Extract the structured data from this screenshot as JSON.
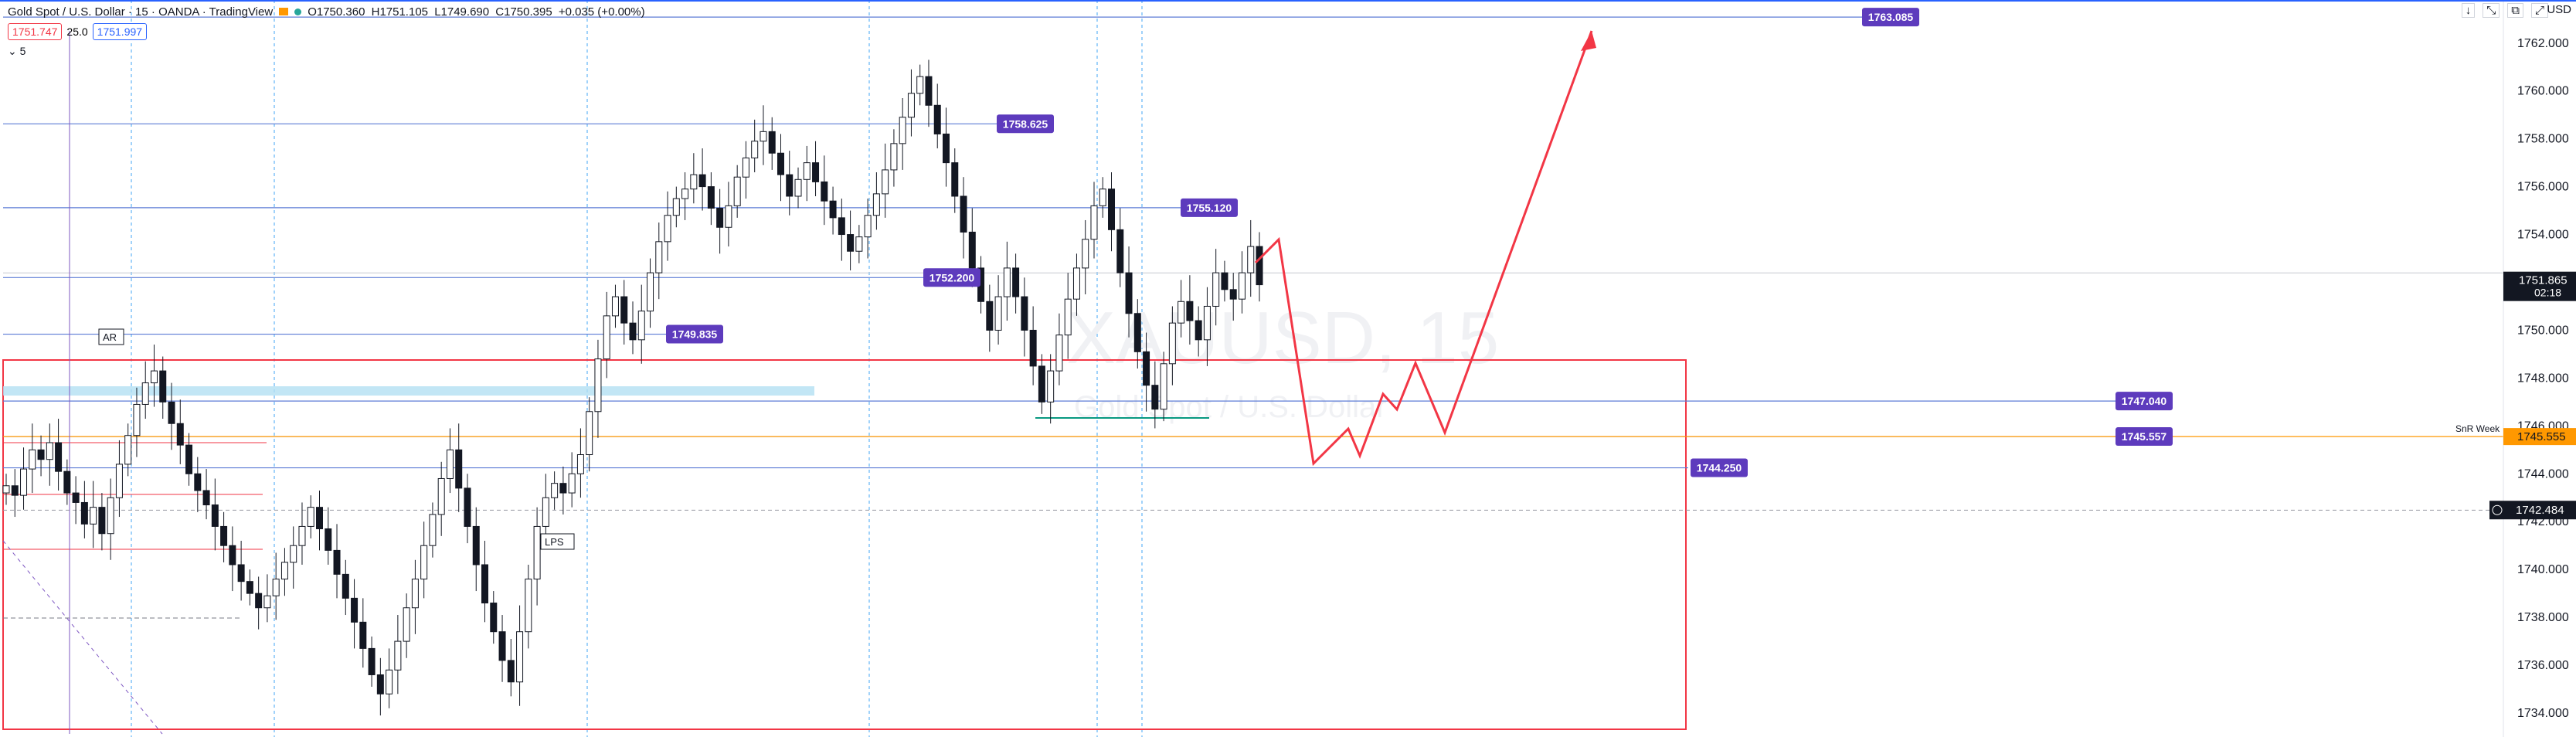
{
  "header": {
    "title": "Gold Spot / U.S. Dollar · 15 · OANDA · TradingView",
    "open": "O1750.360",
    "high": "H1751.105",
    "low": "L1749.690",
    "close": "C1750.395",
    "change": "+0.035 (+0.00%)",
    "sell_price": "1751.747",
    "spread": "25.0",
    "buy_price": "1751.997",
    "indicator_count": "5",
    "currency": "USD",
    "top_controls": [
      "↓",
      "⤡",
      "⧉",
      "⤢"
    ]
  },
  "chart_data": {
    "type": "candlestick",
    "ylim": [
      1733.0,
      1763.8
    ],
    "y_ticks": [
      1734,
      1736,
      1738,
      1740,
      1742,
      1744,
      1746,
      1748,
      1750,
      1752,
      1754,
      1756,
      1758,
      1760,
      1762
    ],
    "y_tick_labels": [
      "1734.000",
      "1736.000",
      "1738.000",
      "1740.000",
      "1742.000",
      "1744.000",
      "1746.000",
      "1748.000",
      "1750.000",
      "1752.000",
      "1754.000",
      "1756.000",
      "1758.000",
      "1760.000",
      "1762.000"
    ],
    "current_price": "1751.865",
    "countdown": "02:18",
    "crosshair_price": "1742.484",
    "snr_label": "SnR Week",
    "snr_price": "1745.555",
    "watermark_symbol": "XAUUSD, 15",
    "watermark_name": "Gold Spot / U.S. Dollar",
    "accent_color": "#5d3bbd",
    "level_labels": [
      {
        "value": 1763.085,
        "text": "1763.085"
      },
      {
        "value": 1758.625,
        "text": "1758.625"
      },
      {
        "value": 1755.12,
        "text": "1755.120"
      },
      {
        "value": 1752.2,
        "text": "1752.200"
      },
      {
        "value": 1749.835,
        "text": "1749.835"
      },
      {
        "value": 1747.04,
        "text": "1747.040"
      },
      {
        "value": 1745.557,
        "text": "1745.557"
      },
      {
        "value": 1744.25,
        "text": "1744.250"
      }
    ],
    "annotations": [
      "AR",
      "LPS"
    ],
    "closes": [
      1743.5,
      1743.1,
      1744.2,
      1745.0,
      1744.6,
      1745.3,
      1744.1,
      1743.2,
      1742.8,
      1741.9,
      1742.6,
      1741.5,
      1743.0,
      1744.4,
      1745.6,
      1746.9,
      1747.8,
      1748.3,
      1747.0,
      1746.1,
      1745.2,
      1744.0,
      1743.3,
      1742.7,
      1741.8,
      1741.0,
      1740.2,
      1739.5,
      1739.0,
      1738.4,
      1738.9,
      1739.6,
      1740.3,
      1741.0,
      1741.8,
      1742.6,
      1741.7,
      1740.8,
      1739.8,
      1738.8,
      1737.8,
      1736.7,
      1735.6,
      1734.8,
      1735.8,
      1737.0,
      1738.4,
      1739.6,
      1741.0,
      1742.3,
      1743.8,
      1745.0,
      1743.4,
      1741.8,
      1740.2,
      1738.6,
      1737.4,
      1736.2,
      1735.3,
      1737.4,
      1739.6,
      1741.8,
      1743.0,
      1743.6,
      1743.2,
      1744.0,
      1744.8,
      1746.6,
      1748.8,
      1750.6,
      1751.4,
      1750.3,
      1749.6,
      1750.8,
      1752.4,
      1753.7,
      1754.8,
      1755.5,
      1755.9,
      1756.5,
      1756.0,
      1755.1,
      1754.3,
      1755.2,
      1756.4,
      1757.2,
      1757.9,
      1758.3,
      1757.4,
      1756.5,
      1755.6,
      1756.3,
      1757.0,
      1756.2,
      1755.4,
      1754.7,
      1754.0,
      1753.3,
      1753.9,
      1754.8,
      1755.7,
      1756.7,
      1757.8,
      1758.9,
      1759.9,
      1760.6,
      1759.4,
      1758.2,
      1757.0,
      1755.6,
      1754.1,
      1752.6,
      1751.2,
      1750.0,
      1751.4,
      1752.6,
      1751.4,
      1750.0,
      1748.5,
      1747.0,
      1748.3,
      1749.8,
      1751.3,
      1752.6,
      1753.8,
      1755.2,
      1755.9,
      1754.2,
      1752.4,
      1750.7,
      1749.1,
      1747.7,
      1746.7,
      1748.6,
      1750.3,
      1751.2,
      1750.4,
      1749.6,
      1751.0,
      1752.4,
      1751.7,
      1751.3,
      1752.4,
      1753.5,
      1751.9
    ]
  }
}
